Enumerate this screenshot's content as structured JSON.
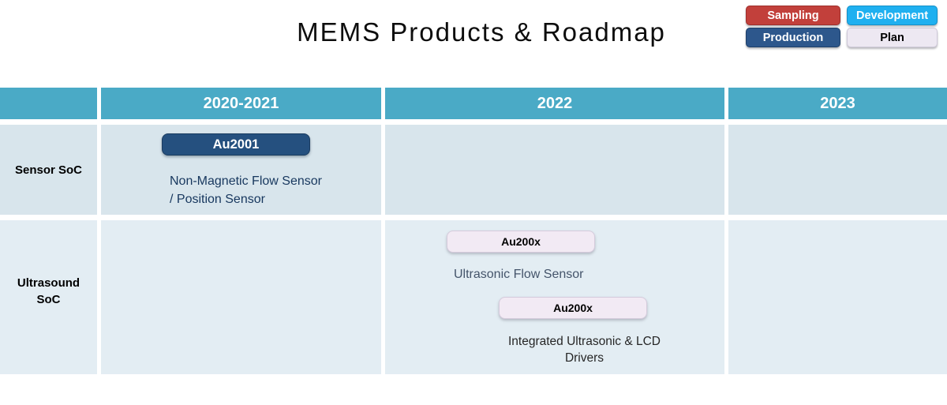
{
  "title": "MEMS Products & Roadmap",
  "legend": {
    "items": [
      {
        "label": "Sampling",
        "color": "#C2403B",
        "text_color": "#FFFFFF"
      },
      {
        "label": "Development",
        "color": "#1FB0F0",
        "text_color": "#FFFFFF"
      },
      {
        "label": "Production",
        "color": "#2D578C",
        "text_color": "#FFFFFF"
      },
      {
        "label": "Plan",
        "color": "#EDE8F2",
        "text_color": "#000000"
      }
    ]
  },
  "roadmap": {
    "columns": [
      "",
      "2020-2021",
      "2022",
      "2023"
    ],
    "rows": [
      {
        "label": "Sensor SoC",
        "items": [
          {
            "chip": "Au2001",
            "status": "production",
            "description": "Non-Magnetic Flow Sensor / Position Sensor",
            "column": "2020-2021"
          }
        ]
      },
      {
        "label": "Ultrasound SoC",
        "items": [
          {
            "chip": "Au200x",
            "status": "plan",
            "description": "Ultrasonic Flow Sensor",
            "column": "2022"
          },
          {
            "chip": "Au200x",
            "status": "plan",
            "description": "Integrated Ultrasonic & LCD Drivers",
            "column": "2022"
          }
        ]
      }
    ]
  },
  "colors": {
    "header_teal": "#4AAAC6",
    "row1_bg": "#D8E5EC",
    "row2_bg": "#E3EDF3",
    "chip_dark_blue": "#25507F",
    "chip_light_lavender": "#F2EAF4",
    "desc_navy": "#17375E",
    "desc_slate": "#44546A",
    "desc_dark": "#262626"
  }
}
